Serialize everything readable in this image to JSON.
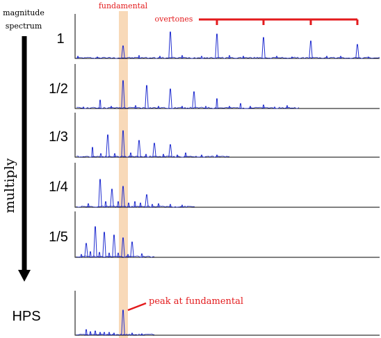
{
  "title_lines": [
    "magnitude",
    "spectrum"
  ],
  "fundamental_label": "fundamental",
  "overtones_label": "overtones",
  "multiply_label": "multiply",
  "hps_label": "HPS",
  "peak_label": "peak at fundamental",
  "colors": {
    "accent": "#e31a1c",
    "spectrum": "#1f2ccf",
    "highlight": "#f8d9b8",
    "axis": "#000000",
    "arrow": "#000000"
  },
  "panels": [
    {
      "label": "1",
      "peaks": [
        [
          177,
          18
        ],
        [
          245,
          38
        ],
        [
          312,
          35
        ],
        [
          379,
          30
        ],
        [
          447,
          25
        ],
        [
          514,
          20
        ],
        [
          112,
          3
        ],
        [
          140,
          2
        ],
        [
          200,
          4
        ],
        [
          230,
          3
        ],
        [
          262,
          4
        ],
        [
          290,
          3
        ],
        [
          330,
          4
        ],
        [
          350,
          3
        ],
        [
          398,
          3
        ],
        [
          420,
          2
        ],
        [
          470,
          3
        ],
        [
          490,
          3
        ],
        [
          530,
          2
        ]
      ]
    },
    {
      "label": "1/2",
      "peaks": [
        [
          144,
          12
        ],
        [
          177,
          40
        ],
        [
          211,
          33
        ],
        [
          245,
          28
        ],
        [
          279,
          24
        ],
        [
          312,
          14
        ],
        [
          346,
          7
        ],
        [
          379,
          5
        ],
        [
          413,
          4
        ],
        [
          120,
          2
        ],
        [
          160,
          3
        ],
        [
          195,
          4
        ],
        [
          228,
          3
        ],
        [
          262,
          3
        ],
        [
          296,
          3
        ],
        [
          330,
          3
        ],
        [
          360,
          3
        ],
        [
          395,
          2
        ]
      ]
    },
    {
      "label": "1/3",
      "peaks": [
        [
          133,
          14
        ],
        [
          155,
          32
        ],
        [
          177,
          38
        ],
        [
          200,
          24
        ],
        [
          222,
          20
        ],
        [
          245,
          18
        ],
        [
          267,
          6
        ],
        [
          290,
          3
        ],
        [
          312,
          3
        ],
        [
          145,
          5
        ],
        [
          165,
          5
        ],
        [
          188,
          6
        ],
        [
          210,
          4
        ],
        [
          235,
          4
        ],
        [
          255,
          3
        ]
      ]
    },
    {
      "label": "1/4",
      "peaks": [
        [
          144,
          40
        ],
        [
          161,
          26
        ],
        [
          177,
          30
        ],
        [
          194,
          8
        ],
        [
          211,
          18
        ],
        [
          228,
          5
        ],
        [
          245,
          4
        ],
        [
          262,
          3
        ],
        [
          127,
          5
        ],
        [
          152,
          8
        ],
        [
          170,
          8
        ],
        [
          185,
          6
        ],
        [
          202,
          6
        ],
        [
          219,
          4
        ]
      ]
    },
    {
      "label": "1/5",
      "peaks": [
        [
          124,
          20
        ],
        [
          137,
          44
        ],
        [
          150,
          36
        ],
        [
          164,
          32
        ],
        [
          177,
          28
        ],
        [
          190,
          22
        ],
        [
          204,
          5
        ],
        [
          117,
          4
        ],
        [
          130,
          8
        ],
        [
          143,
          7
        ],
        [
          157,
          6
        ],
        [
          170,
          6
        ],
        [
          184,
          4
        ]
      ]
    },
    {
      "label": "HPS",
      "peaks": [
        [
          177,
          36
        ],
        [
          124,
          8
        ],
        [
          130,
          5
        ],
        [
          137,
          6
        ],
        [
          144,
          4
        ],
        [
          150,
          4
        ],
        [
          157,
          4
        ],
        [
          164,
          3
        ],
        [
          190,
          3
        ],
        [
          204,
          2
        ]
      ]
    }
  ]
}
